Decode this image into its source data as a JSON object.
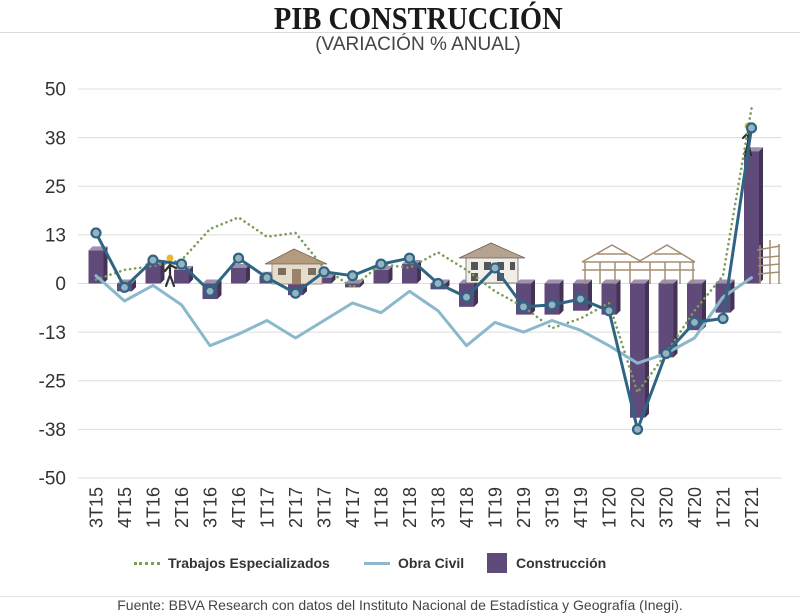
{
  "title": "PIB CONSTRUCCIÓN",
  "subtitle": "(VARIACIÓN % ANUAL)",
  "source": "Fuente: BBVA Research con datos del Instituto Nacional de Estadística y Geografía (Inegi).",
  "chart_data": {
    "type": "bar",
    "categories": [
      "3T15",
      "4T15",
      "1T16",
      "2T16",
      "3T16",
      "4T16",
      "1T17",
      "2T17",
      "3T17",
      "4T17",
      "1T18",
      "2T18",
      "3T18",
      "4T18",
      "1T19",
      "2T19",
      "3T19",
      "4T19",
      "1T20",
      "2T20",
      "3T20",
      "4T20",
      "1T21",
      "2T21"
    ],
    "ylim": [
      -50,
      50
    ],
    "yticks": [
      "50",
      "38",
      "25",
      "13",
      "0",
      "-13",
      "-25",
      "-38",
      "-50"
    ],
    "grid": true,
    "legend_position": "bottom",
    "series": [
      {
        "name": "Trabajos Especializados",
        "type": "line",
        "style": "dotted",
        "color": "#7d9c5a",
        "values": [
          1,
          3.5,
          4.5,
          6,
          14,
          17,
          12,
          13,
          4,
          -1,
          5,
          4,
          8,
          3.5,
          -2,
          -6,
          -11.5,
          -9,
          -5,
          -28,
          -18,
          -7,
          2,
          45
        ]
      },
      {
        "name": "Obra Civil",
        "type": "line",
        "style": "solid",
        "color": "#8cb8cc",
        "values": [
          2,
          -4.5,
          -0.5,
          -5.5,
          -16,
          -13,
          -9.5,
          -14,
          -9.5,
          -5,
          -7.5,
          -2,
          -7,
          -16,
          -10,
          -12.5,
          -9.5,
          -12,
          -16,
          -20.5,
          -18,
          -14,
          -3.5,
          1.5
        ]
      },
      {
        "name": "Construcción",
        "type": "bar",
        "color": "#5f4a7a",
        "values": [
          8.5,
          -2,
          5,
          3.5,
          -4,
          4,
          2,
          -3,
          1.5,
          -1,
          3.5,
          5,
          -1.5,
          -6,
          1,
          -8,
          -8,
          -7,
          -8,
          -34.5,
          -19,
          -12,
          -7.5,
          34
        ]
      },
      {
        "type": "line",
        "style": "solid",
        "markers": true,
        "color": "#2f6482",
        "values": [
          13,
          -1,
          6,
          5,
          -2,
          6.5,
          1.5,
          -2.5,
          3,
          2,
          5,
          6.5,
          0,
          -3.5,
          4,
          -6,
          -5.5,
          -4,
          -7,
          -37.5,
          -18,
          -10,
          -9,
          40
        ]
      }
    ]
  }
}
